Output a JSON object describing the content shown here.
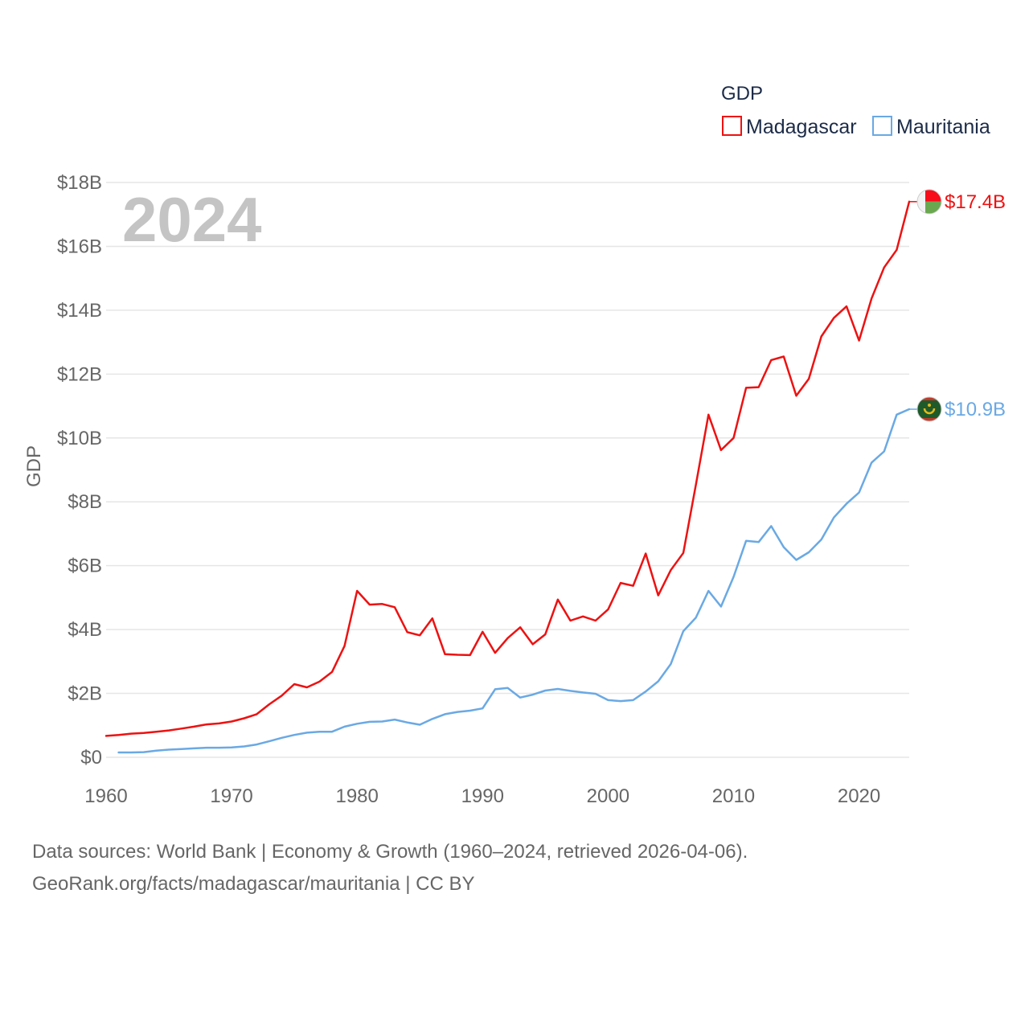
{
  "chart_data": {
    "type": "line",
    "year_label": "2024",
    "ylabel": "GDP",
    "ylim": [
      0,
      18
    ],
    "yticks": [
      0,
      2,
      4,
      6,
      8,
      10,
      12,
      14,
      16,
      18
    ],
    "ytick_labels": [
      "$0",
      "$2B",
      "$4B",
      "$6B",
      "$8B",
      "$10B",
      "$12B",
      "$14B",
      "$16B",
      "$18B"
    ],
    "xlim": [
      1960,
      2024
    ],
    "xticks": [
      1960,
      1970,
      1980,
      1990,
      2000,
      2010,
      2020
    ],
    "xtick_labels": [
      "1960",
      "1970",
      "1980",
      "1990",
      "2000",
      "2010",
      "2020"
    ],
    "legend": {
      "title": "GDP",
      "position": "top-right"
    },
    "series": [
      {
        "name": "Madagascar",
        "color": "#ee1111",
        "end_label": "$17.4B",
        "flag": "madagascar-flag-icon",
        "x": [
          1960,
          1961,
          1962,
          1963,
          1964,
          1965,
          1966,
          1967,
          1968,
          1969,
          1970,
          1971,
          1972,
          1973,
          1974,
          1975,
          1976,
          1977,
          1978,
          1979,
          1980,
          1981,
          1982,
          1983,
          1984,
          1985,
          1986,
          1987,
          1988,
          1989,
          1990,
          1991,
          1992,
          1993,
          1994,
          1995,
          1996,
          1997,
          1998,
          1999,
          2000,
          2001,
          2002,
          2003,
          2004,
          2005,
          2006,
          2007,
          2008,
          2009,
          2010,
          2011,
          2012,
          2013,
          2014,
          2015,
          2016,
          2017,
          2018,
          2019,
          2020,
          2021,
          2022,
          2023,
          2024
        ],
        "values": [
          0.67,
          0.7,
          0.74,
          0.76,
          0.8,
          0.84,
          0.9,
          0.96,
          1.03,
          1.06,
          1.12,
          1.22,
          1.35,
          1.66,
          1.93,
          2.29,
          2.19,
          2.37,
          2.67,
          3.49,
          5.21,
          4.78,
          4.8,
          4.7,
          3.92,
          3.82,
          4.35,
          3.23,
          3.21,
          3.2,
          3.93,
          3.27,
          3.73,
          4.07,
          3.54,
          3.85,
          4.94,
          4.28,
          4.41,
          4.28,
          4.63,
          5.46,
          5.37,
          6.38,
          5.07,
          5.86,
          6.4,
          8.53,
          10.73,
          9.62,
          10.0,
          11.57,
          11.59,
          12.44,
          12.55,
          11.32,
          11.85,
          13.18,
          13.76,
          14.12,
          13.05,
          14.37,
          15.34,
          15.89,
          17.4
        ]
      },
      {
        "name": "Mauritania",
        "color": "#6aa9e4",
        "end_label": "$10.9B",
        "flag": "mauritania-flag-icon",
        "x": [
          1961,
          1962,
          1963,
          1964,
          1965,
          1966,
          1967,
          1968,
          1969,
          1970,
          1971,
          1972,
          1973,
          1974,
          1975,
          1976,
          1977,
          1978,
          1979,
          1980,
          1981,
          1982,
          1983,
          1984,
          1985,
          1986,
          1987,
          1988,
          1989,
          1990,
          1991,
          1992,
          1993,
          1994,
          1995,
          1996,
          1997,
          1998,
          1999,
          2000,
          2001,
          2002,
          2003,
          2004,
          2005,
          2006,
          2007,
          2008,
          2009,
          2010,
          2011,
          2012,
          2013,
          2014,
          2015,
          2016,
          2017,
          2018,
          2019,
          2020,
          2021,
          2022,
          2023,
          2024
        ],
        "values": [
          0.15,
          0.15,
          0.16,
          0.21,
          0.24,
          0.26,
          0.28,
          0.3,
          0.3,
          0.31,
          0.34,
          0.4,
          0.5,
          0.61,
          0.7,
          0.77,
          0.8,
          0.8,
          0.96,
          1.05,
          1.11,
          1.12,
          1.18,
          1.09,
          1.02,
          1.2,
          1.35,
          1.42,
          1.46,
          1.53,
          2.13,
          2.17,
          1.87,
          1.96,
          2.09,
          2.14,
          2.08,
          2.03,
          1.99,
          1.79,
          1.76,
          1.79,
          2.06,
          2.38,
          2.92,
          3.95,
          4.37,
          5.21,
          4.72,
          5.65,
          6.78,
          6.74,
          7.24,
          6.58,
          6.18,
          6.42,
          6.82,
          7.51,
          7.94,
          8.29,
          9.23,
          9.58,
          10.73,
          10.9
        ]
      }
    ]
  },
  "footer": {
    "line1": "Data sources: World Bank | Economy & Growth (1960–2024, retrieved 2026-04-06).",
    "line2": "GeoRank.org/facts/madagascar/mauritania | CC BY"
  }
}
